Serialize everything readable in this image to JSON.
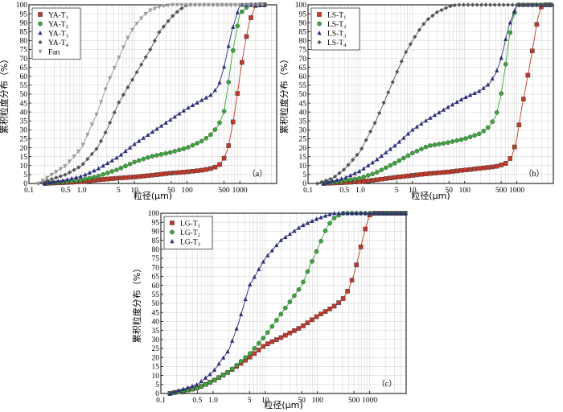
{
  "chart_data": [
    {
      "type": "line",
      "panel_label": "（a）",
      "xlabel": "粒径(μm)",
      "ylabel": "累积粒度分布（%）",
      "xscale": "log",
      "xlim": [
        0.1,
        5000
      ],
      "ylim": [
        0,
        100
      ],
      "xticks": [
        "0.1",
        "0.5",
        "1.0",
        "5",
        "10",
        "50",
        "100",
        "500",
        "1000"
      ],
      "xtick_values": [
        0.1,
        0.5,
        1,
        5,
        10,
        50,
        100,
        500,
        1000
      ],
      "yticks": [
        0,
        5,
        10,
        15,
        20,
        25,
        30,
        35,
        40,
        45,
        50,
        55,
        60,
        65,
        70,
        75,
        80,
        85,
        90,
        95,
        100
      ],
      "grid": true,
      "legend": "top-left",
      "series": [
        {
          "name": "YA-T1",
          "label": "YA-T",
          "sub": "1",
          "color": "#c0392b",
          "marker": "square",
          "x": [
            0.2,
            0.5,
            1,
            2,
            5,
            10,
            20,
            50,
            100,
            200,
            300,
            400,
            500,
            600,
            700,
            800,
            900,
            1000,
            1200,
            1500,
            2000,
            3000
          ],
          "y": [
            0,
            0.5,
            1,
            2,
            3,
            3.6,
            4.5,
            5.8,
            6.5,
            7.5,
            8.5,
            10,
            14,
            20,
            30,
            40,
            50,
            60,
            75,
            90,
            100,
            100
          ]
        },
        {
          "name": "YA-T2",
          "label": "YA-T",
          "sub": "2",
          "color": "#3aa63a",
          "marker": "circle",
          "x": [
            0.2,
            0.5,
            1,
            2,
            5,
            10,
            20,
            50,
            100,
            200,
            300,
            400,
            500,
            600,
            700,
            800,
            1000,
            1500,
            2000,
            3000
          ],
          "y": [
            0,
            1,
            2,
            4,
            8,
            12,
            15,
            17.5,
            20,
            24,
            28,
            33,
            40,
            55,
            70,
            80,
            95,
            100,
            100,
            100
          ]
        },
        {
          "name": "YA-T3",
          "label": "YA-T",
          "sub": "3",
          "color": "#2b2f7a",
          "marker": "triangle",
          "x": [
            0.2,
            0.5,
            1,
            2,
            5,
            10,
            20,
            50,
            100,
            200,
            300,
            400,
            500,
            700,
            1000,
            1500,
            3000
          ],
          "y": [
            0,
            2,
            4,
            8,
            15,
            22,
            28,
            36,
            42,
            47,
            50,
            55,
            65,
            85,
            100,
            100,
            100
          ]
        },
        {
          "name": "YA-T4",
          "label": "YA-T",
          "sub": "4",
          "color": "#555555",
          "marker": "diamond",
          "x": [
            0.15,
            0.5,
            1,
            2,
            3,
            5,
            10,
            20,
            30,
            50,
            70,
            100,
            150,
            200,
            300,
            3000
          ],
          "y": [
            0,
            5,
            10,
            20,
            30,
            45,
            60,
            75,
            85,
            93,
            97,
            100,
            100,
            100,
            100,
            100
          ]
        },
        {
          "name": "Fan",
          "label": "Fan",
          "sub": "",
          "color": "#9a9a9a",
          "marker": "triangle-down",
          "x": [
            0.15,
            0.5,
            1,
            2,
            3,
            5,
            7,
            10,
            15,
            20,
            30,
            50,
            70,
            100,
            3000
          ],
          "y": [
            0,
            10,
            20,
            40,
            55,
            70,
            80,
            88,
            94,
            97,
            99,
            100,
            100,
            100,
            100
          ]
        }
      ]
    },
    {
      "type": "line",
      "panel_label": "（b）",
      "xlabel": "粒径(μm)",
      "ylabel": "累积粒度分布（%）",
      "xscale": "log",
      "xlim": [
        0.1,
        5000
      ],
      "ylim": [
        0,
        100
      ],
      "xticks": [
        "0.1",
        "0.5",
        "1.0",
        "5",
        "10",
        "50",
        "100",
        "500",
        "1000"
      ],
      "xtick_values": [
        0.1,
        0.5,
        1,
        5,
        10,
        50,
        100,
        500,
        1000
      ],
      "yticks": [
        0,
        5,
        10,
        15,
        20,
        25,
        30,
        35,
        40,
        45,
        50,
        55,
        60,
        65,
        70,
        75,
        80,
        85,
        90,
        95,
        100
      ],
      "grid": true,
      "legend": "top-left",
      "series": [
        {
          "name": "LS-T1",
          "label": "LS-T",
          "sub": "1",
          "color": "#c0392b",
          "marker": "square",
          "x": [
            0.2,
            0.5,
            1,
            2,
            5,
            10,
            20,
            50,
            100,
            200,
            400,
            600,
            800,
            1000,
            1200,
            1500,
            2000,
            2500,
            3000,
            5000
          ],
          "y": [
            0,
            0.5,
            1,
            2,
            3.5,
            4.5,
            5.5,
            6.5,
            7.5,
            8.5,
            9.5,
            11,
            15,
            25,
            40,
            55,
            75,
            92,
            100,
            100
          ]
        },
        {
          "name": "LS-T2",
          "label": "LS-T",
          "sub": "2",
          "color": "#3aa63a",
          "marker": "circle",
          "x": [
            0.2,
            0.5,
            1,
            2,
            5,
            10,
            20,
            50,
            100,
            200,
            300,
            400,
            500,
            600,
            700,
            800,
            1000,
            1500,
            5000
          ],
          "y": [
            0,
            1.5,
            3,
            6,
            12,
            17,
            21,
            23,
            25,
            28,
            32,
            38,
            50,
            65,
            80,
            90,
            100,
            100,
            100
          ]
        },
        {
          "name": "LS-T3",
          "label": "LS-T",
          "sub": "3",
          "color": "#2b2f7a",
          "marker": "triangle",
          "x": [
            0.2,
            0.5,
            1,
            2,
            5,
            10,
            20,
            50,
            100,
            200,
            300,
            400,
            500,
            700,
            1000,
            1500,
            5000
          ],
          "y": [
            0,
            3,
            7,
            13,
            22,
            30,
            36,
            43,
            48,
            52,
            56,
            62,
            70,
            88,
            100,
            100,
            100
          ]
        },
        {
          "name": "LS-T4",
          "label": "LS-T",
          "sub": "4",
          "color": "#555555",
          "marker": "diamond",
          "x": [
            0.15,
            0.3,
            0.5,
            1,
            2,
            3,
            5,
            7,
            10,
            15,
            20,
            30,
            50,
            70,
            100,
            5000
          ],
          "y": [
            0,
            3,
            8,
            18,
            35,
            47,
            62,
            72,
            80,
            88,
            92,
            96,
            99,
            100,
            100,
            100
          ]
        }
      ]
    },
    {
      "type": "line",
      "panel_label": "（c）",
      "xlabel": "粒径(μm)",
      "ylabel": "累积粒度分布（%）",
      "xscale": "log",
      "xlim": [
        0.1,
        5000
      ],
      "ylim": [
        0,
        100
      ],
      "xticks": [
        "0.1",
        "0.5",
        "1.0",
        "5",
        "10",
        "50",
        "100",
        "500",
        "1000"
      ],
      "xtick_values": [
        0.1,
        0.5,
        1,
        5,
        10,
        50,
        100,
        500,
        1000
      ],
      "yticks": [
        0,
        5,
        10,
        15,
        20,
        25,
        30,
        35,
        40,
        45,
        50,
        55,
        60,
        65,
        70,
        75,
        80,
        85,
        90,
        95,
        100
      ],
      "grid": true,
      "legend": "top-left",
      "series": [
        {
          "name": "LG-T1",
          "label": "LG-T",
          "sub": "1",
          "color": "#c0392b",
          "marker": "square",
          "x": [
            0.15,
            0.5,
            1,
            2,
            5,
            10,
            20,
            50,
            100,
            200,
            300,
            400,
            500,
            600,
            700,
            800,
            900,
            1000,
            1200,
            5000
          ],
          "y": [
            0,
            3,
            7,
            12,
            20,
            27,
            31,
            37,
            43,
            48,
            52,
            58,
            66,
            75,
            83,
            90,
            95,
            99,
            100,
            100
          ]
        },
        {
          "name": "LG-T2",
          "label": "LG-T",
          "sub": "2",
          "color": "#3aa63a",
          "marker": "circle",
          "x": [
            0.15,
            0.5,
            1,
            2,
            5,
            10,
            20,
            50,
            70,
            100,
            150,
            200,
            300,
            5000
          ],
          "y": [
            0,
            3,
            7,
            12,
            22,
            32,
            44,
            60,
            70,
            80,
            92,
            97,
            100,
            100
          ]
        },
        {
          "name": "LG-T3",
          "label": "LG-T",
          "sub": "3",
          "color": "#2b2f7a",
          "marker": "triangle",
          "x": [
            0.15,
            0.5,
            1,
            2,
            3,
            5,
            10,
            20,
            50,
            100,
            200,
            300,
            5000
          ],
          "y": [
            0,
            5,
            12,
            24,
            38,
            60,
            75,
            85,
            93,
            97,
            100,
            100,
            100
          ]
        }
      ]
    }
  ]
}
